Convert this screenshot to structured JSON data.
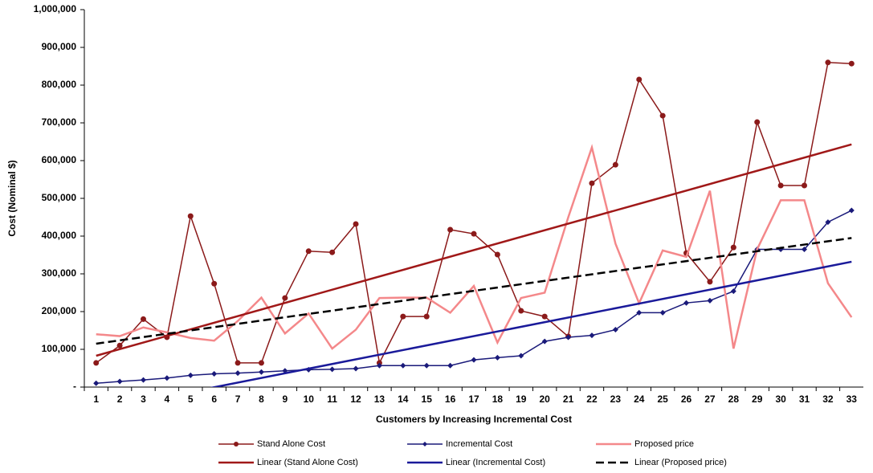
{
  "chart_data": {
    "type": "line",
    "y_label": "Cost (Nominal $)",
    "x_label": "Customers by Increasing Incremental Cost",
    "categories": [
      1,
      2,
      3,
      4,
      5,
      6,
      7,
      8,
      9,
      10,
      11,
      12,
      13,
      14,
      15,
      16,
      17,
      18,
      19,
      20,
      21,
      22,
      23,
      24,
      25,
      26,
      27,
      28,
      29,
      30,
      31,
      32,
      33
    ],
    "ylim": [
      0,
      1000000
    ],
    "yticks": [
      {
        "value": 0,
        "label": "-"
      },
      {
        "value": 100000,
        "label": "100,000"
      },
      {
        "value": 200000,
        "label": "200,000"
      },
      {
        "value": 300000,
        "label": "300,000"
      },
      {
        "value": 400000,
        "label": "400,000"
      },
      {
        "value": 500000,
        "label": "500,000"
      },
      {
        "value": 600000,
        "label": "600,000"
      },
      {
        "value": 700000,
        "label": "700,000"
      },
      {
        "value": 800000,
        "label": "800,000"
      },
      {
        "value": 900000,
        "label": "900,000"
      },
      {
        "value": 1000000,
        "label": "1,000,000"
      }
    ],
    "series": [
      {
        "name": "Stand Alone Cost",
        "color": "#8b1a1a",
        "marker": "circle",
        "values": [
          64000,
          110000,
          180000,
          132000,
          453000,
          274000,
          64000,
          64000,
          236000,
          360000,
          357000,
          432000,
          64000,
          187000,
          187000,
          417000,
          406000,
          351000,
          202000,
          187000,
          134000,
          540000,
          589000,
          815000,
          719000,
          355000,
          279000,
          370000,
          702000,
          534000,
          534000,
          860000,
          857000
        ]
      },
      {
        "name": "Incremental Cost",
        "color": "#1a1a7a",
        "marker": "diamond",
        "values": [
          10000,
          15000,
          19000,
          24000,
          31000,
          35000,
          37000,
          40000,
          43000,
          46000,
          47000,
          49000,
          57000,
          57000,
          57000,
          57000,
          72000,
          78000,
          83000,
          121000,
          132000,
          137000,
          152000,
          197000,
          197000,
          223000,
          229000,
          254000,
          365000,
          365000,
          365000,
          437000,
          468000
        ]
      },
      {
        "name": "Proposed price",
        "color": "#f4888a",
        "marker": "none",
        "values": [
          140000,
          135000,
          158000,
          145000,
          130000,
          123000,
          175000,
          237000,
          142000,
          195000,
          102000,
          152000,
          236000,
          237000,
          237000,
          197000,
          268000,
          118000,
          236000,
          250000,
          450000,
          635000,
          380000,
          222000,
          362000,
          345000,
          520000,
          102000,
          365000,
          495000,
          495000,
          275000,
          185000
        ]
      },
      {
        "name": "Linear (Stand Alone Cost)",
        "color": "#a01818",
        "dashed": false,
        "x": [
          1,
          33
        ],
        "values": [
          83000,
          643000
        ]
      },
      {
        "name": "Linear (Incremental Cost)",
        "color": "#1a1a9a",
        "dashed": false,
        "x": [
          1,
          33
        ],
        "values": [
          -62000,
          332000
        ]
      },
      {
        "name": "Linear (Proposed price)",
        "color": "#000000",
        "dashed": true,
        "x": [
          1,
          33
        ],
        "values": [
          115000,
          395000
        ]
      }
    ]
  }
}
